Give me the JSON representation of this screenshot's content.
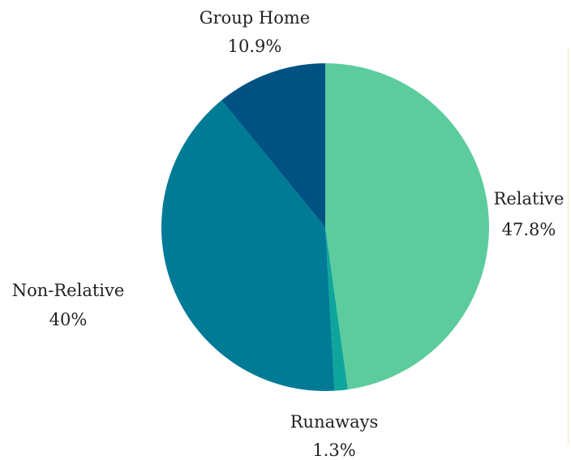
{
  "chart_data": {
    "type": "pie",
    "slices": [
      {
        "label": "Relative",
        "value": 47.8,
        "value_label": "47.8%",
        "color": "#5ccc9e"
      },
      {
        "label": "Runaways",
        "value": 1.3,
        "value_label": "1.3%",
        "color": "#0ea59c"
      },
      {
        "label": "Non-Relative",
        "value": 40,
        "value_label": "40%",
        "color": "#007b95"
      },
      {
        "label": "Group Home",
        "value": 10.9,
        "value_label": "10.9%",
        "color": "#005282"
      }
    ],
    "start_angle": "12 o'clock",
    "direction": "clockwise",
    "legend": "none"
  }
}
